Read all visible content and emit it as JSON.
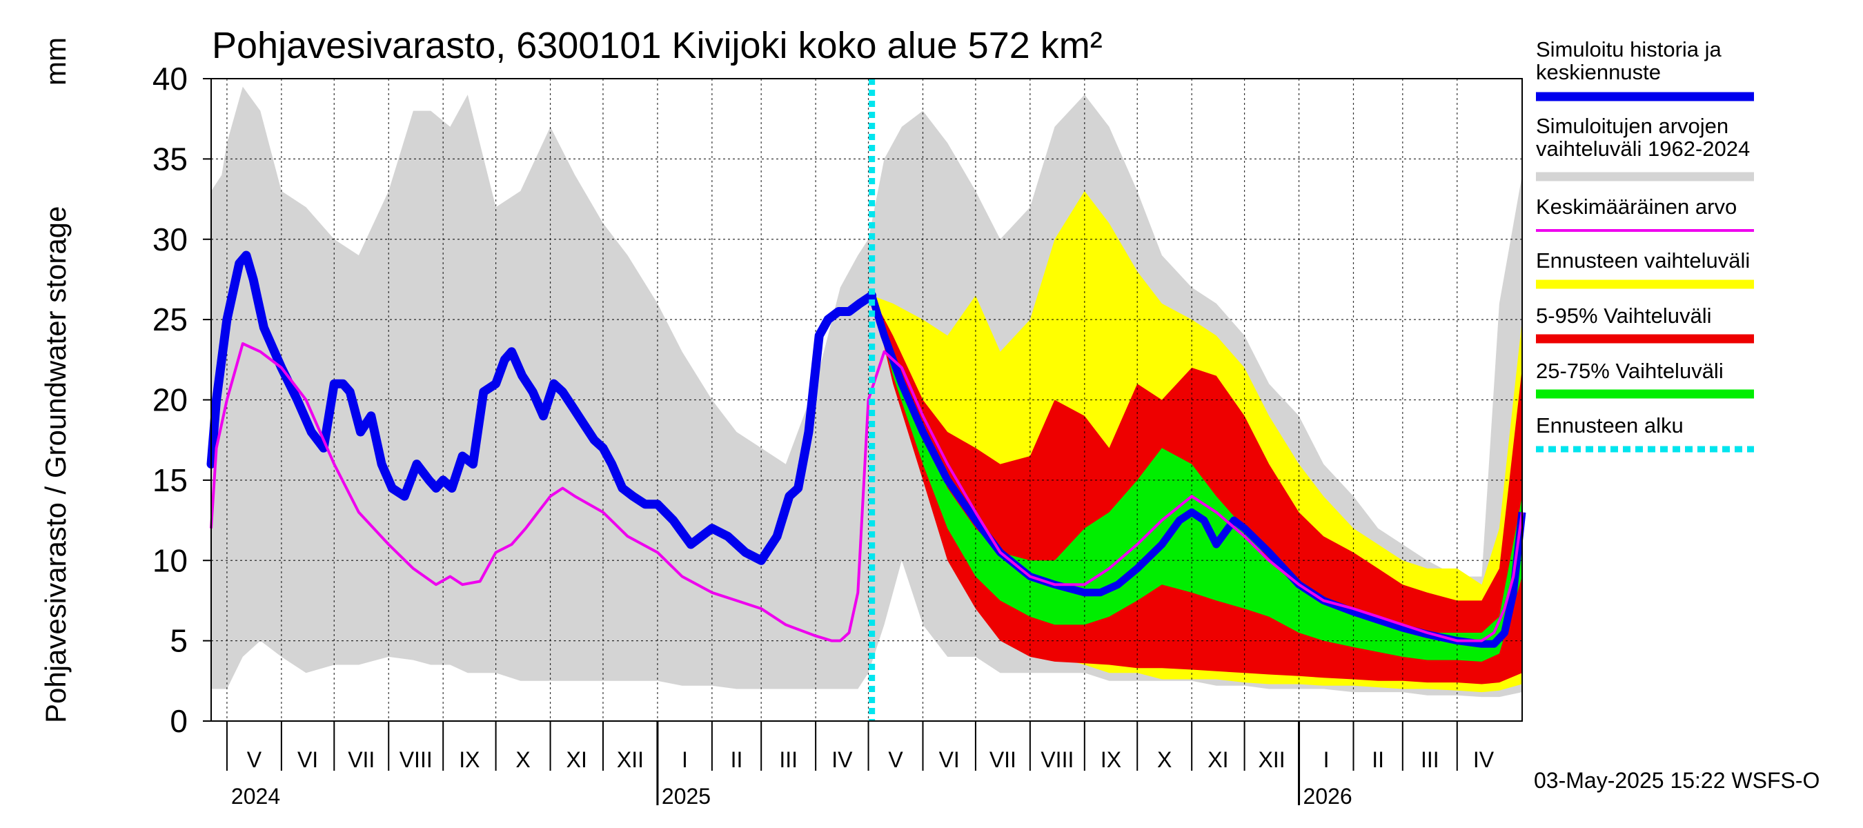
{
  "chart_data": {
    "type": "area",
    "title": "Pohjavesivarasto, 6300101 Kivijoki koko alue 572 km²",
    "ylabel": "Pohjavesivarasto / Groundwater storage",
    "yunit": "mm",
    "ylim": [
      0,
      40
    ],
    "yticks": [
      0,
      5,
      10,
      15,
      20,
      25,
      30,
      35,
      40
    ],
    "xlim": [
      "2024-04-22",
      "2026-05-08"
    ],
    "grid": true,
    "legend_position": "right",
    "forecast_start": "2025-05-03",
    "timestamp": "03-May-2025 15:22 WSFS-O",
    "months": [
      {
        "label": "V",
        "start": "2024-05-01",
        "end": "2024-06-01"
      },
      {
        "label": "VI",
        "start": "2024-06-01",
        "end": "2024-07-01"
      },
      {
        "label": "VII",
        "start": "2024-07-01",
        "end": "2024-08-01"
      },
      {
        "label": "VIII",
        "start": "2024-08-01",
        "end": "2024-09-01"
      },
      {
        "label": "IX",
        "start": "2024-09-01",
        "end": "2024-10-01"
      },
      {
        "label": "X",
        "start": "2024-10-01",
        "end": "2024-11-01"
      },
      {
        "label": "XI",
        "start": "2024-11-01",
        "end": "2024-12-01"
      },
      {
        "label": "XII",
        "start": "2024-12-01",
        "end": "2025-01-01"
      },
      {
        "label": "I",
        "start": "2025-01-01",
        "end": "2025-02-01"
      },
      {
        "label": "II",
        "start": "2025-02-01",
        "end": "2025-03-01"
      },
      {
        "label": "III",
        "start": "2025-03-01",
        "end": "2025-04-01"
      },
      {
        "label": "IV",
        "start": "2025-04-01",
        "end": "2025-05-01"
      },
      {
        "label": "V",
        "start": "2025-05-01",
        "end": "2025-06-01"
      },
      {
        "label": "VI",
        "start": "2025-06-01",
        "end": "2025-07-01"
      },
      {
        "label": "VII",
        "start": "2025-07-01",
        "end": "2025-08-01"
      },
      {
        "label": "VIII",
        "start": "2025-08-01",
        "end": "2025-09-01"
      },
      {
        "label": "IX",
        "start": "2025-09-01",
        "end": "2025-10-01"
      },
      {
        "label": "X",
        "start": "2025-10-01",
        "end": "2025-11-01"
      },
      {
        "label": "XI",
        "start": "2025-11-01",
        "end": "2025-12-01"
      },
      {
        "label": "XII",
        "start": "2025-12-01",
        "end": "2026-01-01"
      },
      {
        "label": "I",
        "start": "2026-01-01",
        "end": "2026-02-01"
      },
      {
        "label": "II",
        "start": "2026-02-01",
        "end": "2026-03-01"
      },
      {
        "label": "III",
        "start": "2026-03-01",
        "end": "2026-04-01"
      },
      {
        "label": "IV",
        "start": "2026-04-01",
        "end": "2026-05-01"
      }
    ],
    "years": [
      {
        "label": "2024",
        "date": "2024-05-01"
      },
      {
        "label": "2025",
        "date": "2025-01-01"
      },
      {
        "label": "2026",
        "date": "2026-01-01"
      }
    ],
    "colors": {
      "history": "#0000ee",
      "hist_range": "#d4d4d4",
      "mean": "#ee00ee",
      "forecast_range": "#ffff00",
      "p5_95": "#ee0000",
      "p25_75": "#00ee00",
      "forecast_start": "#00e5ee"
    },
    "legend": [
      {
        "key": "history",
        "label": "Simuloitu historia ja keskiennuste"
      },
      {
        "key": "hist_range",
        "label": "Simuloitujen arvojen vaihteluväli 1962-2024"
      },
      {
        "key": "mean",
        "label": "Keskimääräinen arvo"
      },
      {
        "key": "forecast_range",
        "label": "Ennusteen vaihteluväli"
      },
      {
        "key": "p5_95",
        "label": "5-95% Vaihteluväli"
      },
      {
        "key": "p25_75",
        "label": "25-75% Vaihteluväli"
      },
      {
        "key": "forecast_start",
        "label": "Ennusteen alku"
      }
    ],
    "series": {
      "hist_range": {
        "x": [
          "2024-04-22",
          "2024-04-28",
          "2024-05-01",
          "2024-05-10",
          "2024-05-20",
          "2024-06-01",
          "2024-06-15",
          "2024-07-01",
          "2024-07-15",
          "2024-08-01",
          "2024-08-15",
          "2024-08-25",
          "2024-09-05",
          "2024-09-15",
          "2024-10-01",
          "2024-10-15",
          "2024-11-01",
          "2024-11-15",
          "2024-12-01",
          "2024-12-15",
          "2025-01-01",
          "2025-01-15",
          "2025-02-01",
          "2025-02-15",
          "2025-03-01",
          "2025-03-15",
          "2025-04-01",
          "2025-04-15",
          "2025-04-25",
          "2025-05-01",
          "2025-05-10",
          "2025-05-20",
          "2025-06-01",
          "2025-06-15",
          "2025-07-01",
          "2025-07-15",
          "2025-08-01",
          "2025-08-15",
          "2025-09-01",
          "2025-09-15",
          "2025-10-01",
          "2025-10-15",
          "2025-11-01",
          "2025-11-15",
          "2025-12-01",
          "2025-12-15",
          "2026-01-01",
          "2026-01-15",
          "2026-02-01",
          "2026-02-15",
          "2026-03-01",
          "2026-03-15",
          "2026-04-01",
          "2026-04-15",
          "2026-04-25",
          "2026-05-08"
        ],
        "upper": [
          33,
          34,
          36,
          39.5,
          38,
          33,
          32,
          30,
          29,
          33,
          38,
          38,
          37,
          39,
          32,
          33,
          37,
          34,
          31,
          29,
          26,
          23,
          20,
          18,
          17,
          16,
          21,
          27,
          29,
          30,
          35,
          37,
          38,
          36,
          33,
          30,
          32,
          37,
          39,
          37,
          33,
          29,
          27,
          26,
          24,
          21,
          19,
          16,
          14,
          12,
          11,
          10,
          9,
          9,
          26,
          34
        ],
        "lower": [
          2,
          2,
          2,
          4,
          5,
          4,
          3,
          3.5,
          3.5,
          4,
          3.8,
          3.5,
          3.5,
          3,
          3,
          2.5,
          2.5,
          2.5,
          2.5,
          2.5,
          2.5,
          2.2,
          2.2,
          2,
          2,
          2,
          2,
          2,
          2,
          3,
          6,
          10,
          6,
          4,
          4,
          3,
          3,
          3,
          3,
          2.5,
          2.5,
          2.5,
          2.5,
          2.2,
          2.2,
          2,
          2,
          2,
          1.8,
          1.8,
          1.8,
          1.6,
          1.6,
          1.5,
          1.5,
          1.8
        ]
      },
      "forecast_range": {
        "x": [
          "2025-05-03",
          "2025-05-15",
          "2025-06-01",
          "2025-06-15",
          "2025-07-01",
          "2025-07-15",
          "2025-08-01",
          "2025-08-15",
          "2025-09-01",
          "2025-09-15",
          "2025-10-01",
          "2025-10-15",
          "2025-11-01",
          "2025-11-15",
          "2025-12-01",
          "2025-12-15",
          "2026-01-01",
          "2026-01-15",
          "2026-02-01",
          "2026-02-15",
          "2026-03-01",
          "2026-03-15",
          "2026-04-01",
          "2026-04-15",
          "2026-04-25",
          "2026-05-08"
        ],
        "upper": [
          26.5,
          26,
          25,
          24,
          26.5,
          23,
          25,
          30,
          33,
          31,
          28,
          26,
          25,
          24,
          22,
          19,
          16,
          14,
          12,
          11,
          10,
          9.5,
          9.5,
          8.5,
          12,
          25
        ],
        "lower": [
          26.5,
          22,
          17,
          12,
          9,
          7,
          5,
          4,
          3.5,
          3,
          3,
          2.6,
          2.6,
          2.6,
          2.4,
          2.3,
          2.3,
          2.2,
          2.2,
          2.1,
          2,
          2,
          1.9,
          1.8,
          1.9,
          2.3
        ]
      },
      "p5_95": {
        "x": [
          "2025-05-03",
          "2025-05-15",
          "2025-06-01",
          "2025-06-15",
          "2025-07-01",
          "2025-07-15",
          "2025-08-01",
          "2025-08-15",
          "2025-09-01",
          "2025-09-15",
          "2025-10-01",
          "2025-10-15",
          "2025-11-01",
          "2025-11-15",
          "2025-12-01",
          "2025-12-15",
          "2026-01-01",
          "2026-01-15",
          "2026-02-01",
          "2026-02-15",
          "2026-03-01",
          "2026-03-15",
          "2026-04-01",
          "2026-04-15",
          "2026-04-25",
          "2026-05-08"
        ],
        "upper": [
          26.5,
          24,
          20,
          18,
          17,
          16,
          16.5,
          20,
          19,
          17,
          21,
          20,
          22,
          21.5,
          19,
          16,
          13,
          11.5,
          10.5,
          9.5,
          8.5,
          8,
          7.5,
          7.5,
          9.5,
          22
        ],
        "lower": [
          26.5,
          21,
          15,
          10,
          7,
          5,
          4,
          3.7,
          3.6,
          3.5,
          3.3,
          3.3,
          3.2,
          3.1,
          3,
          2.9,
          2.8,
          2.7,
          2.6,
          2.5,
          2.5,
          2.4,
          2.4,
          2.3,
          2.4,
          3
        ]
      },
      "p25_75": {
        "x": [
          "2025-05-03",
          "2025-05-15",
          "2025-06-01",
          "2025-06-15",
          "2025-07-01",
          "2025-07-15",
          "2025-08-01",
          "2025-08-15",
          "2025-09-01",
          "2025-09-15",
          "2025-10-01",
          "2025-10-15",
          "2025-11-01",
          "2025-11-15",
          "2025-12-01",
          "2025-12-15",
          "2026-01-01",
          "2026-01-15",
          "2026-02-01",
          "2026-02-15",
          "2026-03-01",
          "2026-03-15",
          "2026-04-01",
          "2026-04-15",
          "2026-04-25",
          "2026-05-08"
        ],
        "upper": [
          26.5,
          22.5,
          18,
          14.5,
          12,
          10.5,
          10,
          10,
          12,
          13,
          15,
          17,
          16,
          14,
          12,
          10,
          8.5,
          7.5,
          7,
          6.5,
          6,
          5.5,
          5.5,
          5.5,
          6.5,
          14
        ],
        "lower": [
          26.5,
          21.5,
          16,
          12,
          9,
          7.5,
          6.5,
          6,
          6,
          6.5,
          7.5,
          8.5,
          8,
          7.5,
          7,
          6.5,
          5.5,
          5,
          4.6,
          4.3,
          4,
          3.8,
          3.8,
          3.7,
          4.2,
          9
        ]
      },
      "history": {
        "x": [
          "2024-04-22",
          "2024-04-25",
          "2024-05-01",
          "2024-05-08",
          "2024-05-12",
          "2024-05-16",
          "2024-05-22",
          "2024-06-01",
          "2024-06-10",
          "2024-06-18",
          "2024-06-25",
          "2024-07-01",
          "2024-07-06",
          "2024-07-10",
          "2024-07-16",
          "2024-07-22",
          "2024-07-28",
          "2024-08-03",
          "2024-08-10",
          "2024-08-17",
          "2024-08-24",
          "2024-08-28",
          "2024-09-01",
          "2024-09-06",
          "2024-09-12",
          "2024-09-18",
          "2024-09-24",
          "2024-10-01",
          "2024-10-06",
          "2024-10-10",
          "2024-10-16",
          "2024-10-22",
          "2024-10-28",
          "2024-11-03",
          "2024-11-08",
          "2024-11-14",
          "2024-11-20",
          "2024-11-26",
          "2024-12-01",
          "2024-12-06",
          "2024-12-12",
          "2024-12-18",
          "2024-12-25",
          "2025-01-01",
          "2025-01-10",
          "2025-01-20",
          "2025-02-01",
          "2025-02-10",
          "2025-02-20",
          "2025-03-01",
          "2025-03-10",
          "2025-03-17",
          "2025-03-22",
          "2025-03-28",
          "2025-04-03",
          "2025-04-08",
          "2025-04-14",
          "2025-04-20",
          "2025-04-26",
          "2025-05-03"
        ],
        "y": [
          16,
          20,
          25,
          28.5,
          29,
          27.5,
          24.5,
          22,
          20,
          18,
          17,
          21,
          21,
          20.5,
          18,
          19,
          16,
          14.5,
          14,
          16,
          15,
          14.5,
          15,
          14.5,
          16.5,
          16,
          20.5,
          21,
          22.5,
          23,
          21.5,
          20.5,
          19,
          21,
          20.5,
          19.5,
          18.5,
          17.5,
          17,
          16,
          14.5,
          14,
          13.5,
          13.5,
          12.5,
          11,
          12,
          11.5,
          10.5,
          10,
          11.5,
          14,
          14.5,
          18,
          24,
          25,
          25.5,
          25.5,
          26,
          26.5
        ]
      },
      "mean": {
        "x": [
          "2024-04-22",
          "2024-04-25",
          "2024-05-01",
          "2024-05-10",
          "2024-05-20",
          "2024-06-01",
          "2024-06-15",
          "2024-07-01",
          "2024-07-15",
          "2024-08-01",
          "2024-08-15",
          "2024-08-28",
          "2024-09-05",
          "2024-09-12",
          "2024-09-22",
          "2024-10-01",
          "2024-10-10",
          "2024-10-18",
          "2024-10-25",
          "2024-11-01",
          "2024-11-08",
          "2024-11-15",
          "2024-12-01",
          "2024-12-15",
          "2025-01-01",
          "2025-01-15",
          "2025-02-01",
          "2025-02-15",
          "2025-03-01",
          "2025-03-15",
          "2025-04-01",
          "2025-04-10",
          "2025-04-15",
          "2025-04-20",
          "2025-04-25",
          "2025-05-01",
          "2025-05-10",
          "2025-05-20",
          "2025-06-01",
          "2025-06-15",
          "2025-07-01",
          "2025-07-15",
          "2025-08-01",
          "2025-08-15",
          "2025-09-01",
          "2025-09-15",
          "2025-10-01",
          "2025-10-15",
          "2025-11-01",
          "2025-11-15",
          "2025-12-01",
          "2025-12-15",
          "2026-01-01",
          "2026-01-15",
          "2026-02-01",
          "2026-02-15",
          "2026-03-01",
          "2026-03-15",
          "2026-04-01",
          "2026-04-15",
          "2026-04-22",
          "2026-04-28",
          "2026-05-03",
          "2026-05-08"
        ],
        "y": [
          12,
          17,
          20,
          23.5,
          23,
          22,
          20,
          16,
          13,
          11,
          9.5,
          8.5,
          9,
          8.5,
          8.7,
          10.5,
          11,
          12,
          13,
          14,
          14.5,
          14,
          13,
          11.5,
          10.5,
          9,
          8,
          7.5,
          7,
          6,
          5.3,
          5,
          5,
          5.5,
          8,
          20,
          23,
          22,
          19,
          16,
          13,
          10.5,
          9,
          8.5,
          8.5,
          9.5,
          11,
          12.5,
          14,
          13,
          11.5,
          10,
          8.5,
          7.5,
          7,
          6.5,
          6,
          5.5,
          5,
          5,
          5.5,
          7,
          9,
          13
        ]
      },
      "median_forecast": {
        "x": [
          "2025-05-03",
          "2025-05-10",
          "2025-05-20",
          "2025-06-01",
          "2025-06-15",
          "2025-07-01",
          "2025-07-15",
          "2025-08-01",
          "2025-08-15",
          "2025-09-01",
          "2025-09-10",
          "2025-09-20",
          "2025-10-01",
          "2025-10-15",
          "2025-10-25",
          "2025-11-01",
          "2025-11-08",
          "2025-11-15",
          "2025-11-25",
          "2025-12-01",
          "2025-12-15",
          "2026-01-01",
          "2026-01-15",
          "2026-02-01",
          "2026-02-15",
          "2026-03-01",
          "2026-03-15",
          "2026-04-01",
          "2026-04-15",
          "2026-04-22",
          "2026-04-28",
          "2026-05-03",
          "2026-05-08"
        ],
        "y": [
          26.5,
          24,
          21,
          18,
          15,
          12.5,
          10.5,
          9,
          8.5,
          8,
          8,
          8.5,
          9.5,
          11,
          12.5,
          13,
          12.5,
          11,
          12.5,
          12,
          10.5,
          8.5,
          7.5,
          6.8,
          6.3,
          5.8,
          5.4,
          5,
          4.8,
          4.8,
          5.5,
          8,
          13
        ]
      }
    }
  }
}
